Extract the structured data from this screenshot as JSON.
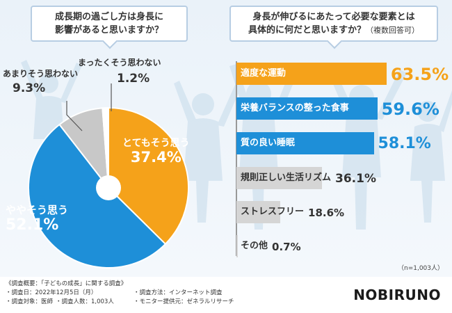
{
  "left_question": {
    "line1": "成長期の過ごし方は身長に",
    "line2": "影響があると思いますか？"
  },
  "right_question": {
    "line1": "身長が伸びるにあたって必要な要素とは",
    "line2": "具体的に何だと思いますか？",
    "line2_small": "（複数回答可）"
  },
  "colors": {
    "orange": "#f5a21a",
    "blue": "#1e8fd8",
    "gray": "#c8c8c8"
  },
  "chart_data": [
    {
      "type": "pie",
      "title": "成長期の過ごし方は身長に影響があると思いますか？",
      "slices": [
        {
          "label": "とてもそう思う",
          "value": 37.4,
          "display": "37.4%",
          "color": "#f5a21a"
        },
        {
          "label": "ややそう思う",
          "value": 52.1,
          "display": "52.1%",
          "color": "#1e8fd8"
        },
        {
          "label": "あまりそう思わない",
          "value": 9.3,
          "display": "9.3%",
          "color": "#c8c8c8"
        },
        {
          "label": "まったくそう思わない",
          "value": 1.2,
          "display": "1.2%",
          "color": "#ffffff"
        }
      ]
    },
    {
      "type": "bar",
      "orientation": "horizontal",
      "title": "身長が伸びるにあたって必要な要素とは具体的に何だと思いますか？（複数回答可）",
      "xlim": [
        0,
        100
      ],
      "categories": [
        "適度な運動",
        "栄養バランスの整った食事",
        "質の良い睡眠",
        "規則正しい生活リズム",
        "ストレスフリー",
        "その他"
      ],
      "values": [
        63.5,
        59.6,
        58.1,
        36.1,
        18.6,
        0.7
      ],
      "value_labels": [
        "63.5%",
        "59.6%",
        "58.1%",
        "36.1%",
        "18.6%",
        "0.7%"
      ],
      "colors": [
        "#f5a21a",
        "#1e8fd8",
        "#1e8fd8",
        "#d5d5d5",
        "#d5d5d5",
        "#d5d5d5"
      ],
      "note": "（n=1,003人）"
    }
  ],
  "footer": {
    "title": "《調査概要：「子どもの成長」に関する調査》",
    "date": "・調査日：2022年12月5日（月）",
    "method": "・調査方法：インターネット調査",
    "target": "・調査対象：医師",
    "count": "・調査人数：1,003人",
    "provider": "・モニター提供元：ゼネラルリサーチ"
  },
  "logo": "NOBIRUNO"
}
